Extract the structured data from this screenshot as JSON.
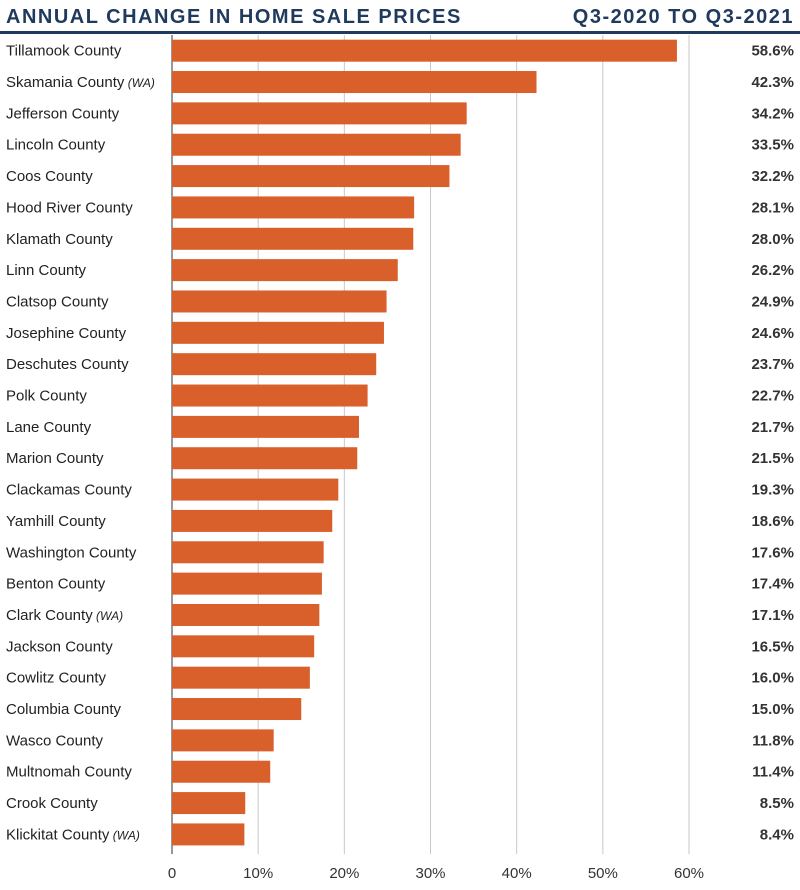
{
  "header": {
    "title": "ANNUAL CHANGE IN HOME SALE PRICES",
    "subtitle": "Q3-2020 TO Q3-2021"
  },
  "colors": {
    "bar": "#d95f2b",
    "grid": "#c8c8c8",
    "header_rule": "#1f3a5c",
    "title": "#1f3a5c"
  },
  "chart_data": {
    "type": "bar",
    "orientation": "horizontal",
    "title": "ANNUAL CHANGE IN HOME SALE PRICES",
    "subtitle": "Q3-2020 TO Q3-2021",
    "xlim": [
      0,
      60
    ],
    "xticks": [
      0,
      10,
      20,
      30,
      40,
      50,
      60
    ],
    "xtick_labels": [
      "0",
      "10%",
      "20%",
      "30%",
      "40%",
      "50%",
      "60%"
    ],
    "grid": "vertical",
    "categories": [
      {
        "name": "Tillamook County",
        "qualifier": ""
      },
      {
        "name": "Skamania County",
        "qualifier": "(WA)"
      },
      {
        "name": "Jefferson County",
        "qualifier": ""
      },
      {
        "name": "Lincoln County",
        "qualifier": ""
      },
      {
        "name": "Coos County",
        "qualifier": ""
      },
      {
        "name": "Hood River County",
        "qualifier": ""
      },
      {
        "name": "Klamath County",
        "qualifier": ""
      },
      {
        "name": "Linn County",
        "qualifier": ""
      },
      {
        "name": "Clatsop County",
        "qualifier": ""
      },
      {
        "name": "Josephine County",
        "qualifier": ""
      },
      {
        "name": "Deschutes County",
        "qualifier": ""
      },
      {
        "name": "Polk County",
        "qualifier": ""
      },
      {
        "name": "Lane County",
        "qualifier": ""
      },
      {
        "name": "Marion County",
        "qualifier": ""
      },
      {
        "name": "Clackamas County",
        "qualifier": ""
      },
      {
        "name": "Yamhill County",
        "qualifier": ""
      },
      {
        "name": "Washington County",
        "qualifier": ""
      },
      {
        "name": "Benton County",
        "qualifier": ""
      },
      {
        "name": "Clark County",
        "qualifier": "(WA)"
      },
      {
        "name": "Jackson County",
        "qualifier": ""
      },
      {
        "name": "Cowlitz County",
        "qualifier": ""
      },
      {
        "name": "Columbia County",
        "qualifier": ""
      },
      {
        "name": "Wasco County",
        "qualifier": ""
      },
      {
        "name": "Multnomah County",
        "qualifier": ""
      },
      {
        "name": "Crook County",
        "qualifier": ""
      },
      {
        "name": "Klickitat County",
        "qualifier": "(WA)"
      }
    ],
    "values": [
      58.6,
      42.3,
      34.2,
      33.5,
      32.2,
      28.1,
      28.0,
      26.2,
      24.9,
      24.6,
      23.7,
      22.7,
      21.7,
      21.5,
      19.3,
      18.6,
      17.6,
      17.4,
      17.1,
      16.5,
      16.0,
      15.0,
      11.8,
      11.4,
      8.5,
      8.4
    ],
    "value_labels": [
      "58.6%",
      "42.3%",
      "34.2%",
      "33.5%",
      "32.2%",
      "28.1%",
      "28.0%",
      "26.2%",
      "24.9%",
      "24.6%",
      "23.7%",
      "22.7%",
      "21.7%",
      "21.5%",
      "19.3%",
      "18.6%",
      "17.6%",
      "17.4%",
      "17.1%",
      "16.5%",
      "16.0%",
      "15.0%",
      "11.8%",
      "11.4%",
      "8.5%",
      "8.4%"
    ]
  }
}
